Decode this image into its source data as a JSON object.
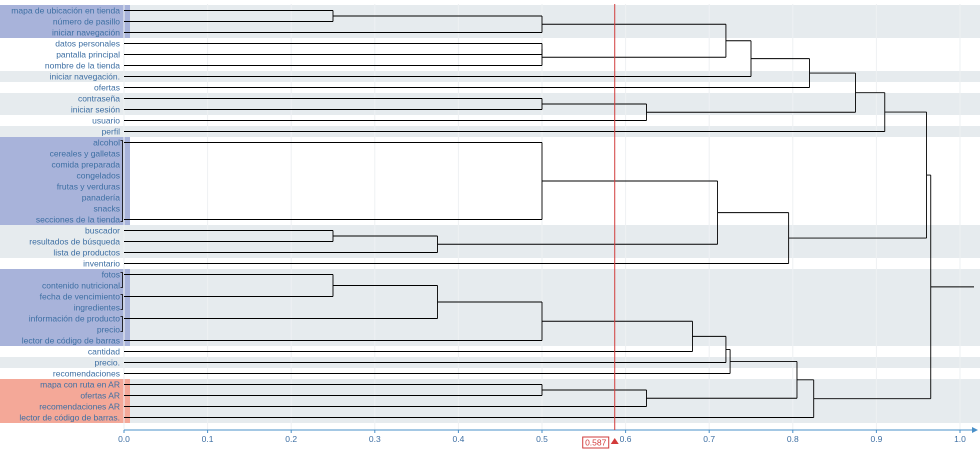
{
  "chart_data": {
    "type": "dendrogram",
    "orientation": "horizontal",
    "xlim": [
      0,
      1.0
    ],
    "x_ticks": [
      "0.0",
      "0.1",
      "0.2",
      "0.3",
      "0.4",
      "0.5",
      "0.6",
      "0.7",
      "0.8",
      "0.9",
      "1.0"
    ],
    "threshold": 0.587,
    "threshold_label": "0.587",
    "colors": {
      "tree": "#000000",
      "threshold": "#d23b3b",
      "axis": "#4a90c8",
      "label": "#3e6fa3",
      "band": "#e6ebee",
      "group_blue": "#a8b3da",
      "group_red": "#f4a898"
    },
    "leaves": [
      "mapa de ubicación en tienda",
      "número de pasillo",
      "iniciar navegación",
      "datos personales",
      "pantalla principal",
      "nombre de la tienda",
      "iniciar navegación.",
      "ofertas",
      "contraseña",
      "iniciar sesión",
      "usuario",
      "perfil",
      "alcohol",
      "cereales y galletas",
      "comida preparada",
      "congelados",
      "frutas y verduras",
      "panadería",
      "snacks",
      "secciones de la tienda",
      "buscador",
      "resultados de búsqueda",
      "lista de productos",
      "inventario",
      "fotos",
      "contenido nutricional",
      "fecha de vencimiento",
      "ingredientes",
      "información de producto",
      "precio",
      "lector de código de barras",
      "cantidad",
      "precio.",
      "recomendaciones",
      "mapa con ruta en AR",
      "ofertas AR",
      "recomendaciones AR",
      "lector de código de barras."
    ],
    "highlight_groups": [
      {
        "color": "blue",
        "leaves": [
          0,
          2
        ]
      },
      {
        "color": "blue",
        "leaves": [
          12,
          19
        ]
      },
      {
        "color": "blue",
        "leaves": [
          24,
          30
        ]
      },
      {
        "color": "red",
        "leaves": [
          34,
          37
        ]
      }
    ],
    "band_rows": [
      0,
      1,
      2,
      6,
      8,
      9,
      11,
      20,
      21,
      22,
      24,
      25,
      26,
      27,
      28,
      29,
      30,
      32,
      34,
      35,
      36,
      37
    ],
    "leaf_ties": [
      [
        12,
        19
      ],
      [
        24,
        25
      ],
      [
        26,
        27
      ],
      [
        28,
        29
      ]
    ],
    "merges": [
      {
        "a": "L0",
        "b": "L1",
        "h": 0.25
      },
      {
        "a": "M0",
        "b": "L2",
        "h": 0.5
      },
      {
        "a": "L3",
        "b": "L4",
        "h": 0.5
      },
      {
        "a": "M2",
        "b": "L5",
        "h": 0.5
      },
      {
        "a": "M1",
        "b": "M3",
        "h": 0.72
      },
      {
        "a": "M4",
        "b": "L6",
        "h": 0.75
      },
      {
        "a": "M5",
        "b": "L7",
        "h": 0.82
      },
      {
        "a": "L8",
        "b": "L9",
        "h": 0.5
      },
      {
        "a": "M7",
        "b": "L10",
        "h": 0.625
      },
      {
        "a": "M6",
        "b": "M8",
        "h": 0.875
      },
      {
        "a": "M9",
        "b": "L11",
        "h": 0.91
      },
      {
        "a": "L12",
        "b": "L19",
        "h": 0.5
      },
      {
        "a": "L20",
        "b": "L21",
        "h": 0.25
      },
      {
        "a": "M12",
        "b": "L22",
        "h": 0.375
      },
      {
        "a": "M11",
        "b": "M13",
        "h": 0.71
      },
      {
        "a": "M14",
        "b": "L23",
        "h": 0.795
      },
      {
        "a": "M10",
        "b": "M15",
        "h": 0.96
      },
      {
        "a": "L24",
        "b": "L26",
        "h": 0.25
      },
      {
        "a": "M17",
        "b": "L28",
        "h": 0.375
      },
      {
        "a": "M18",
        "b": "L30",
        "h": 0.5
      },
      {
        "a": "M19",
        "b": "L31",
        "h": 0.68
      },
      {
        "a": "M20",
        "b": "L32",
        "h": 0.72
      },
      {
        "a": "M21",
        "b": "L33",
        "h": 0.725
      },
      {
        "a": "L34",
        "b": "L35",
        "h": 0.5
      },
      {
        "a": "M23",
        "b": "L36",
        "h": 0.625
      },
      {
        "a": "M22",
        "b": "M24",
        "h": 0.805
      },
      {
        "a": "M25",
        "b": "L37",
        "h": 0.825
      },
      {
        "a": "M16",
        "b": "M26",
        "h": 0.965
      }
    ]
  }
}
